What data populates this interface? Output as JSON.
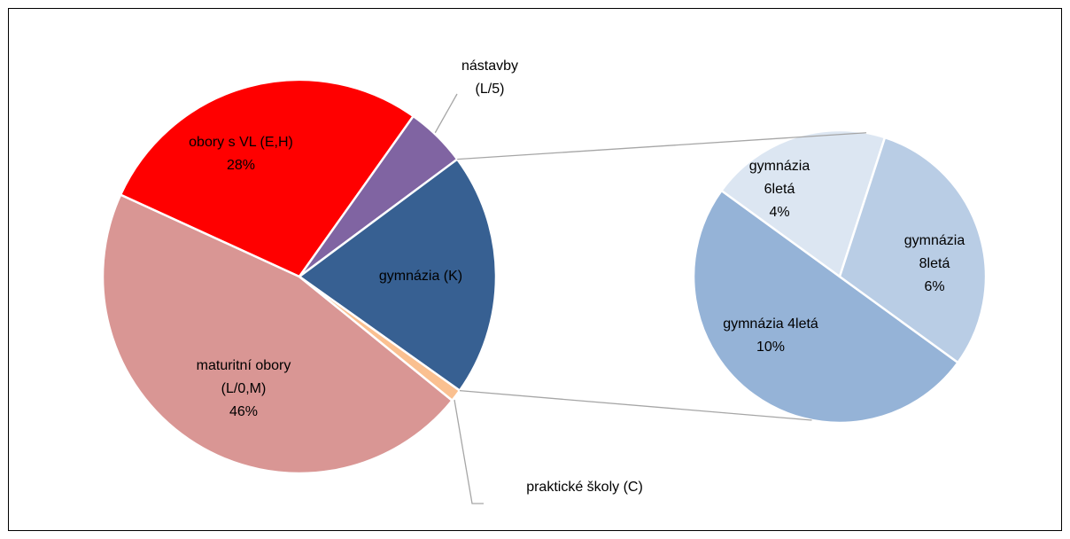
{
  "chart_data": [
    {
      "type": "pie",
      "categories": [
        "maturitní obory (L/0,M)",
        "obory s VL (E,H)",
        "nástavby (L/5)",
        "gymnázia (K)",
        "praktické školy (C)"
      ],
      "values": [
        46,
        28,
        5,
        20,
        1
      ],
      "value_labels": [
        "46%",
        "28%",
        null,
        null,
        null
      ],
      "colors": [
        "#d99694",
        "#ff0000",
        "#8064a2",
        "#376092",
        "#fac090"
      ]
    },
    {
      "type": "pie",
      "categories": [
        "gymnázia 4letá",
        "gymnázia 6letá",
        "gymnázia 8letá"
      ],
      "values": [
        10,
        4,
        6
      ],
      "value_labels": [
        "10%",
        "4%",
        "6%"
      ],
      "colors": [
        "#95b3d7",
        "#dce6f2",
        "#b9cde5"
      ]
    }
  ]
}
